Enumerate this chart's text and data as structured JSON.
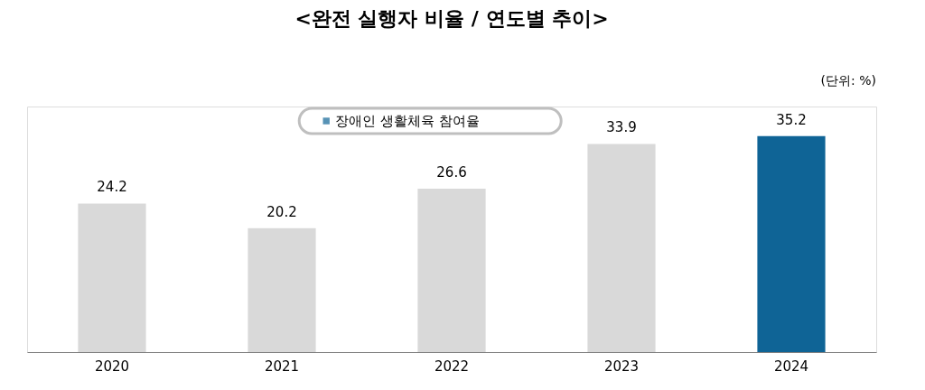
{
  "chart_data": {
    "type": "bar",
    "title": "<완전 실행자 비율 / 연도별 추이>",
    "annotations": [
      "(단위: %)"
    ],
    "categories": [
      "2020",
      "2021",
      "2022",
      "2023",
      "2024"
    ],
    "series": [
      {
        "name": "장애인 생활체육 참여율",
        "color": "#0f6496",
        "colors": [
          "#d9d9d9",
          "#d9d9d9",
          "#d9d9d9",
          "#d9d9d9",
          "#0f6496"
        ],
        "values": [
          24.2,
          20.2,
          26.6,
          33.9,
          35.2
        ]
      }
    ],
    "data_labels": true,
    "legend": "top",
    "grid": false
  }
}
